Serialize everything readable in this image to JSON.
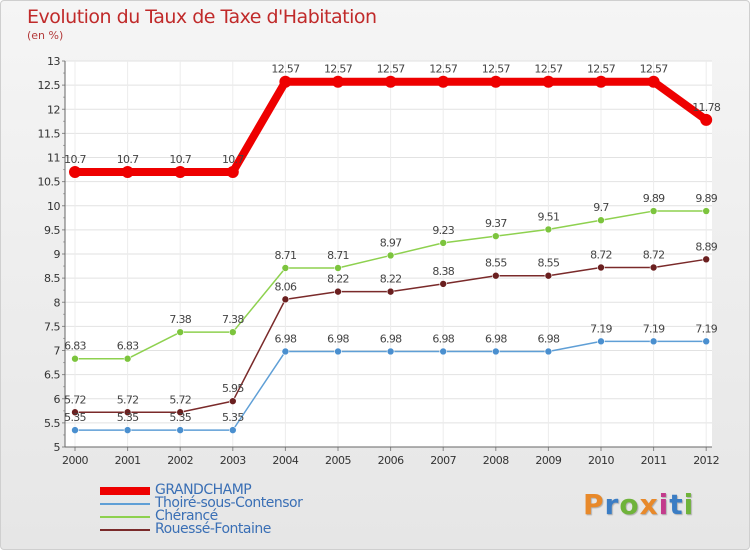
{
  "header": {
    "title": "Evolution du Taux de Taxe d'Habitation",
    "subtitle": "(en %)"
  },
  "logo": {
    "text": "Proxiti",
    "colors": [
      "#e8892a",
      "#3b7dc4",
      "#6fb33a",
      "#e8892a",
      "#c33b8c",
      "#3b7dc4",
      "#6fb33a"
    ]
  },
  "chart_data": {
    "type": "line",
    "title": "Evolution du Taux de Taxe d'Habitation",
    "subtitle": "(en %)",
    "xlabel": "",
    "ylabel": "",
    "x": [
      "2000",
      "2001",
      "2002",
      "2003",
      "2004",
      "2005",
      "2006",
      "2007",
      "2008",
      "2009",
      "2010",
      "2011",
      "2012"
    ],
    "ylim": [
      5,
      13
    ],
    "yticks": [
      "5",
      "5.5",
      "6",
      "6.5",
      "7",
      "7.5",
      "8",
      "8.5",
      "9",
      "9.5",
      "10",
      "10.5",
      "11",
      "11.5",
      "12",
      "12.5",
      "13"
    ],
    "grid": true,
    "legend_position": "bottom-left",
    "series": [
      {
        "name": "GRANDCHAMP",
        "color": "#ee0000",
        "values": [
          10.7,
          10.7,
          10.7,
          10.7,
          12.57,
          12.57,
          12.57,
          12.57,
          12.57,
          12.57,
          12.57,
          12.57,
          11.78
        ],
        "labels": [
          "10.7",
          "10.7",
          "10.7",
          "10.7",
          "12.57",
          "12.57",
          "12.57",
          "12.57",
          "12.57",
          "12.57",
          "12.57",
          "12.57",
          "11.78"
        ]
      },
      {
        "name": "Thoiré-sous-Contensor",
        "color": "#5f9fd6",
        "values": [
          5.35,
          5.35,
          5.35,
          5.35,
          6.98,
          6.98,
          6.98,
          6.98,
          6.98,
          6.98,
          7.19,
          7.19,
          7.19
        ],
        "labels": [
          "5.35",
          "5.35",
          "5.35",
          "5.35",
          "6.98",
          "6.98",
          "6.98",
          "6.98",
          "6.98",
          "6.98",
          "7.19",
          "7.19",
          "7.19"
        ]
      },
      {
        "name": "Chérancé",
        "color": "#8ed14f",
        "values": [
          6.83,
          6.83,
          7.38,
          7.38,
          8.71,
          8.71,
          8.97,
          9.23,
          9.37,
          9.51,
          9.7,
          9.89,
          9.89
        ],
        "labels": [
          "6.83",
          "6.83",
          "7.38",
          "7.38",
          "8.71",
          "8.71",
          "8.97",
          "9.23",
          "9.37",
          "9.51",
          "9.7",
          "9.89",
          "9.89"
        ]
      },
      {
        "name": "Rouessé-Fontaine",
        "color": "#7a2a2a",
        "values": [
          5.72,
          5.72,
          5.72,
          5.95,
          8.06,
          8.22,
          8.22,
          8.38,
          8.55,
          8.55,
          8.72,
          8.72,
          8.89
        ],
        "labels": [
          "5.72",
          "5.72",
          "5.72",
          "5.95",
          "8.06",
          "8.22",
          "8.22",
          "8.38",
          "8.55",
          "8.55",
          "8.72",
          "8.72",
          "8.89"
        ]
      }
    ]
  }
}
